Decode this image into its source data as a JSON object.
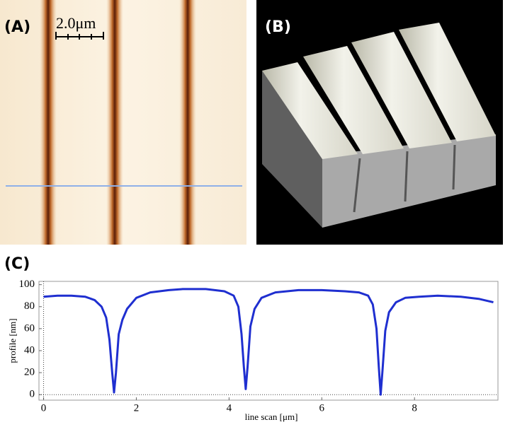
{
  "panels": {
    "a": {
      "label": "(A)",
      "scale_bar": "2.0μm"
    },
    "b": {
      "label": "(B)"
    },
    "c": {
      "label": "(C)"
    }
  },
  "chart_data": {
    "type": "line",
    "x_label": "line scan [μm]",
    "y_label": "profile [nm]",
    "xlim": [
      -0.1,
      9.8
    ],
    "ylim": [
      -5,
      103
    ],
    "xticks": [
      0,
      2,
      4,
      6,
      8
    ],
    "yticks": [
      0,
      20,
      40,
      60,
      80,
      100
    ],
    "series": [
      {
        "name": "profile",
        "color": "#1f2fd0",
        "x": [
          0,
          0.3,
          0.6,
          0.9,
          1.1,
          1.25,
          1.35,
          1.42,
          1.48,
          1.52,
          1.56,
          1.62,
          1.7,
          1.8,
          2.0,
          2.3,
          2.7,
          3.0,
          3.5,
          3.9,
          4.1,
          4.2,
          4.27,
          4.32,
          4.36,
          4.4,
          4.46,
          4.55,
          4.7,
          5.0,
          5.5,
          6.0,
          6.5,
          6.8,
          7.0,
          7.1,
          7.18,
          7.23,
          7.27,
          7.31,
          7.37,
          7.45,
          7.6,
          7.8,
          8.1,
          8.5,
          9.0,
          9.4,
          9.7
        ],
        "values": [
          89,
          90,
          90,
          89,
          86,
          80,
          70,
          50,
          20,
          2,
          20,
          55,
          68,
          78,
          88,
          93,
          95,
          96,
          96,
          94,
          90,
          80,
          55,
          25,
          5,
          25,
          62,
          78,
          88,
          93,
          95,
          95,
          94,
          93,
          90,
          82,
          60,
          25,
          0,
          22,
          58,
          75,
          84,
          88,
          89,
          90,
          89,
          87,
          84
        ]
      }
    ]
  }
}
